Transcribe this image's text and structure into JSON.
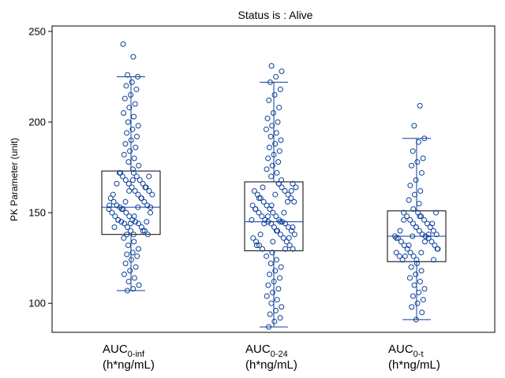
{
  "chart_data": {
    "type": "box",
    "title": "Status is : Alive",
    "ylabel": "PK Parameter (unit)",
    "xlabel": "",
    "ylim": [
      84,
      253
    ],
    "yticks": [
      100,
      150,
      200,
      250
    ],
    "categories": [
      {
        "name": "AUC",
        "subscript": "0-inf",
        "unit": "(h*ng/mL)"
      },
      {
        "name": "AUC",
        "subscript": "0-24",
        "unit": "(h*ng/mL)"
      },
      {
        "name": "AUC",
        "subscript": "0-t",
        "unit": "(h*ng/mL)"
      }
    ],
    "boxes": [
      {
        "whisker_low": 107,
        "q1": 138,
        "median": 153,
        "q3": 173,
        "whisker_high": 225,
        "points": [
          243,
          236,
          226,
          225,
          222,
          220,
          218,
          215,
          213,
          210,
          208,
          205,
          203,
          200,
          198,
          196,
          194,
          192,
          190,
          188,
          186,
          184,
          182,
          180,
          178,
          176,
          174,
          172,
          170,
          168,
          166,
          164,
          162,
          160,
          158,
          156,
          154,
          153,
          152,
          150,
          148,
          146,
          145,
          144,
          142,
          140,
          138,
          136,
          134,
          132,
          130,
          128,
          127,
          126,
          124,
          122,
          120,
          118,
          116,
          114,
          112,
          110,
          108,
          107
        ]
      },
      {
        "whisker_low": 87,
        "q1": 129,
        "median": 145,
        "q3": 167,
        "whisker_high": 222,
        "points": [
          231,
          228,
          225,
          222,
          218,
          215,
          212,
          208,
          205,
          202,
          200,
          198,
          196,
          194,
          192,
          190,
          188,
          186,
          184,
          182,
          180,
          178,
          176,
          174,
          172,
          170,
          168,
          166,
          164,
          162,
          160,
          158,
          156,
          154,
          152,
          150,
          148,
          146,
          145,
          144,
          142,
          140,
          138,
          136,
          134,
          132,
          130,
          128,
          126,
          124,
          122,
          120,
          118,
          116,
          114,
          112,
          110,
          108,
          106,
          104,
          102,
          100,
          98,
          96,
          94,
          92,
          90,
          87
        ]
      },
      {
        "whisker_low": 91,
        "q1": 123,
        "median": 137,
        "q3": 151,
        "whisker_high": 191,
        "points": [
          209,
          198,
          191,
          189,
          184,
          180,
          178,
          176,
          172,
          168,
          165,
          162,
          160,
          157,
          155,
          152,
          150,
          148,
          146,
          144,
          142,
          140,
          138,
          137,
          136,
          134,
          132,
          130,
          128,
          126,
          124,
          122,
          120,
          118,
          116,
          114,
          112,
          110,
          108,
          106,
          104,
          102,
          100,
          98,
          95,
          91
        ]
      }
    ]
  }
}
